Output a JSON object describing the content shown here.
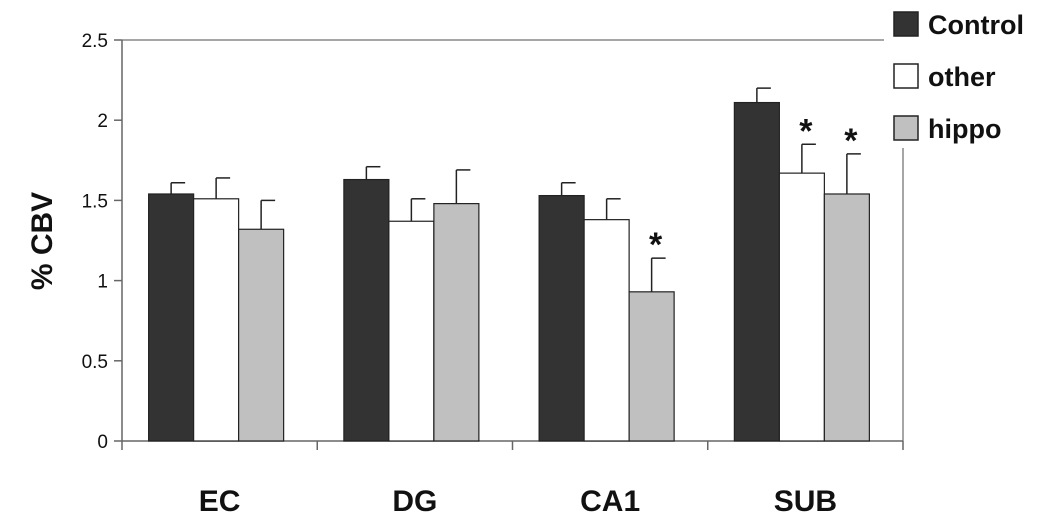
{
  "chart_data": {
    "type": "bar",
    "title": "",
    "xlabel": "",
    "ylabel": "% CBV",
    "ylim": [
      0,
      2.5
    ],
    "yticks": [
      "0",
      "0.5",
      "1",
      "1.5",
      "2",
      "2.5"
    ],
    "grid": false,
    "legend_position": "top-right",
    "categories": [
      "EC",
      "DG",
      "CA1",
      "SUB"
    ],
    "series": [
      {
        "name": "Control",
        "color": "#333333",
        "values": [
          1.54,
          1.63,
          1.53,
          2.11
        ],
        "error": [
          0.07,
          0.08,
          0.08,
          0.09
        ],
        "significant": [
          false,
          false,
          false,
          false
        ]
      },
      {
        "name": "other",
        "color": "#ffffff",
        "values": [
          1.51,
          1.37,
          1.38,
          1.67
        ],
        "error": [
          0.13,
          0.14,
          0.13,
          0.18
        ],
        "significant": [
          false,
          false,
          false,
          true
        ]
      },
      {
        "name": "hippo",
        "color": "#c0c0c0",
        "values": [
          1.32,
          1.48,
          0.93,
          1.54
        ],
        "error": [
          0.18,
          0.21,
          0.21,
          0.25
        ],
        "significant": [
          false,
          false,
          true,
          true
        ]
      }
    ],
    "significance_marker": "*"
  }
}
